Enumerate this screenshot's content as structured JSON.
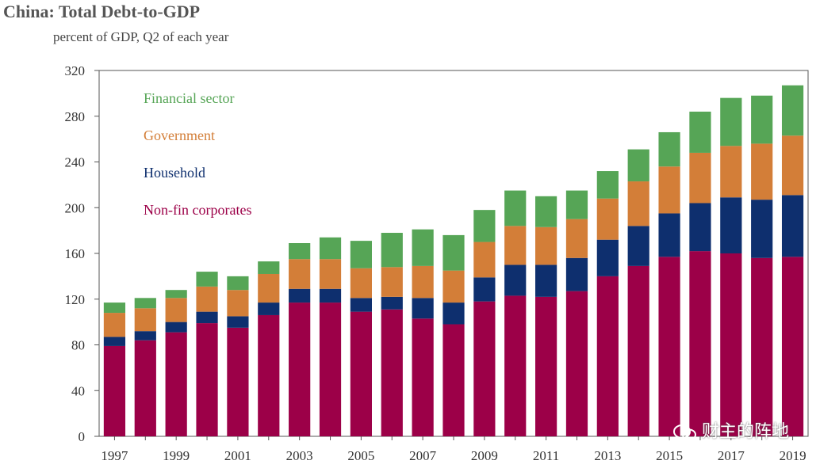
{
  "watermark": "财主的阵地",
  "chart_data": {
    "type": "bar",
    "stacked": true,
    "title": "China: Total Debt-to-GDP",
    "subtitle": "percent of GDP, Q2 of each year",
    "xlabel": "",
    "ylabel": "",
    "ylim": [
      0,
      320
    ],
    "yticks": [
      0,
      40,
      80,
      120,
      160,
      200,
      240,
      280,
      320
    ],
    "categories": [
      "1997",
      "1998",
      "1999",
      "2000",
      "2001",
      "2002",
      "2003",
      "2004",
      "2005",
      "2006",
      "2007",
      "2008",
      "2009",
      "2010",
      "2011",
      "2012",
      "2013",
      "2014",
      "2015",
      "2016",
      "2017",
      "2018",
      "2019"
    ],
    "xtick_labels": [
      "1997",
      "1999",
      "2001",
      "2003",
      "2005",
      "2007",
      "2009",
      "2011",
      "2013",
      "2015",
      "2017",
      "2019"
    ],
    "legend_position": "top-left",
    "grid": false,
    "series": [
      {
        "name": "Non-fin corporates",
        "color": "#9c0048",
        "values": [
          79,
          84,
          91,
          99,
          95,
          106,
          117,
          117,
          109,
          111,
          103,
          98,
          118,
          123,
          122,
          127,
          140,
          149,
          157,
          162,
          160,
          156,
          157
        ]
      },
      {
        "name": "Household",
        "color": "#0e2f6e",
        "values": [
          8,
          8,
          9,
          10,
          10,
          11,
          12,
          12,
          12,
          11,
          18,
          19,
          21,
          27,
          28,
          29,
          32,
          35,
          38,
          42,
          49,
          51,
          54
        ]
      },
      {
        "name": "Government",
        "color": "#d37e38",
        "values": [
          21,
          20,
          21,
          22,
          23,
          25,
          26,
          26,
          26,
          26,
          28,
          28,
          31,
          34,
          33,
          34,
          36,
          39,
          41,
          44,
          45,
          49,
          52
        ]
      },
      {
        "name": "Financial sector",
        "color": "#56a556",
        "values": [
          9,
          9,
          7,
          13,
          12,
          11,
          14,
          19,
          24,
          30,
          32,
          31,
          28,
          31,
          27,
          25,
          24,
          28,
          30,
          36,
          42,
          42,
          44
        ]
      }
    ]
  }
}
